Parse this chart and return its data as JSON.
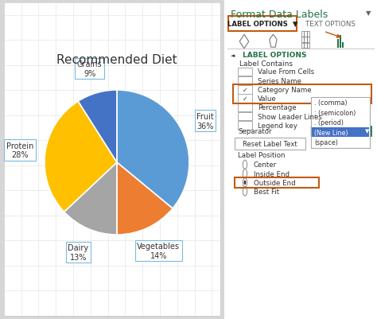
{
  "title": "Recommended Diet",
  "categories": [
    "Fruit",
    "Vegetables",
    "Dairy",
    "Protein",
    "Grains"
  ],
  "values": [
    36,
    14,
    13,
    28,
    9
  ],
  "slice_colors": [
    "#5B9BD5",
    "#ED7D31",
    "#A5A5A5",
    "#FFC000",
    "#4472C4"
  ],
  "label_texts": [
    "Fruit\n36%",
    "Vegetables\n14%",
    "Dairy\n13%",
    "Protein\n28%",
    "Grains\n9%"
  ],
  "pie_bg": "#FFFFFF",
  "right_bg": "#FFFFFF",
  "fig_bg": "#D6D6D6",
  "title_fontsize": 11,
  "label_fontsize": 7,
  "right_title": "Format Data Labels",
  "right_title_color": "#217346",
  "label_options_text": "LABEL OPTIONS",
  "text_options_text": "TEXT OPTIONS",
  "orange_color": "#C55A11",
  "checkbox_items": [
    [
      false,
      "Value From Cells"
    ],
    [
      false,
      "Series Name"
    ],
    [
      true,
      "Category Name"
    ],
    [
      true,
      "Value"
    ],
    [
      false,
      "Percentage"
    ],
    [
      false,
      "Show Leader Lines"
    ],
    [
      false,
      "Legend key"
    ]
  ],
  "dropdown_items": [
    ". (comma)",
    "; (semicolon)",
    ". (period)",
    "(New Line)",
    "(space)"
  ],
  "new_line_highlight": "#4472C4",
  "radio_items": [
    [
      false,
      "Center"
    ],
    [
      false,
      "Inside End"
    ],
    [
      true,
      "Outside End"
    ],
    [
      false,
      "Best Fit"
    ]
  ]
}
